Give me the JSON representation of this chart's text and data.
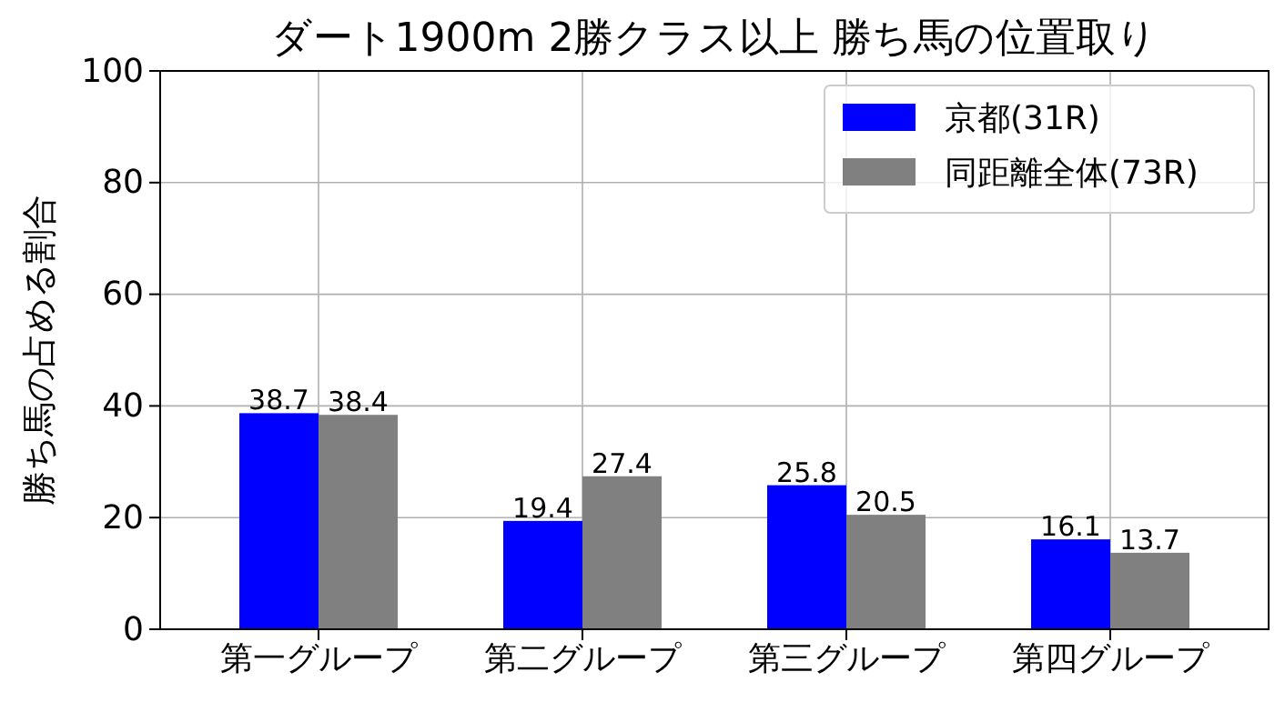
{
  "chart_data": {
    "type": "bar",
    "title": "ダート1900m 2勝クラス以上 勝ち馬の位置取り",
    "ylabel": "勝ち馬の占める割合",
    "categories": [
      "第一グループ",
      "第二グループ",
      "第三グループ",
      "第四グループ"
    ],
    "series": [
      {
        "name": "京都(31R)",
        "color": "#0000ff",
        "values": [
          38.7,
          19.4,
          25.8,
          16.1
        ]
      },
      {
        "name": "同距離全体(73R)",
        "color": "#808080",
        "values": [
          38.4,
          27.4,
          20.5,
          13.7
        ]
      }
    ],
    "ylim": [
      0,
      100
    ],
    "yticks": [
      0,
      20,
      40,
      60,
      80,
      100
    ],
    "grid": true,
    "legend": "top right",
    "data_labels": true
  }
}
